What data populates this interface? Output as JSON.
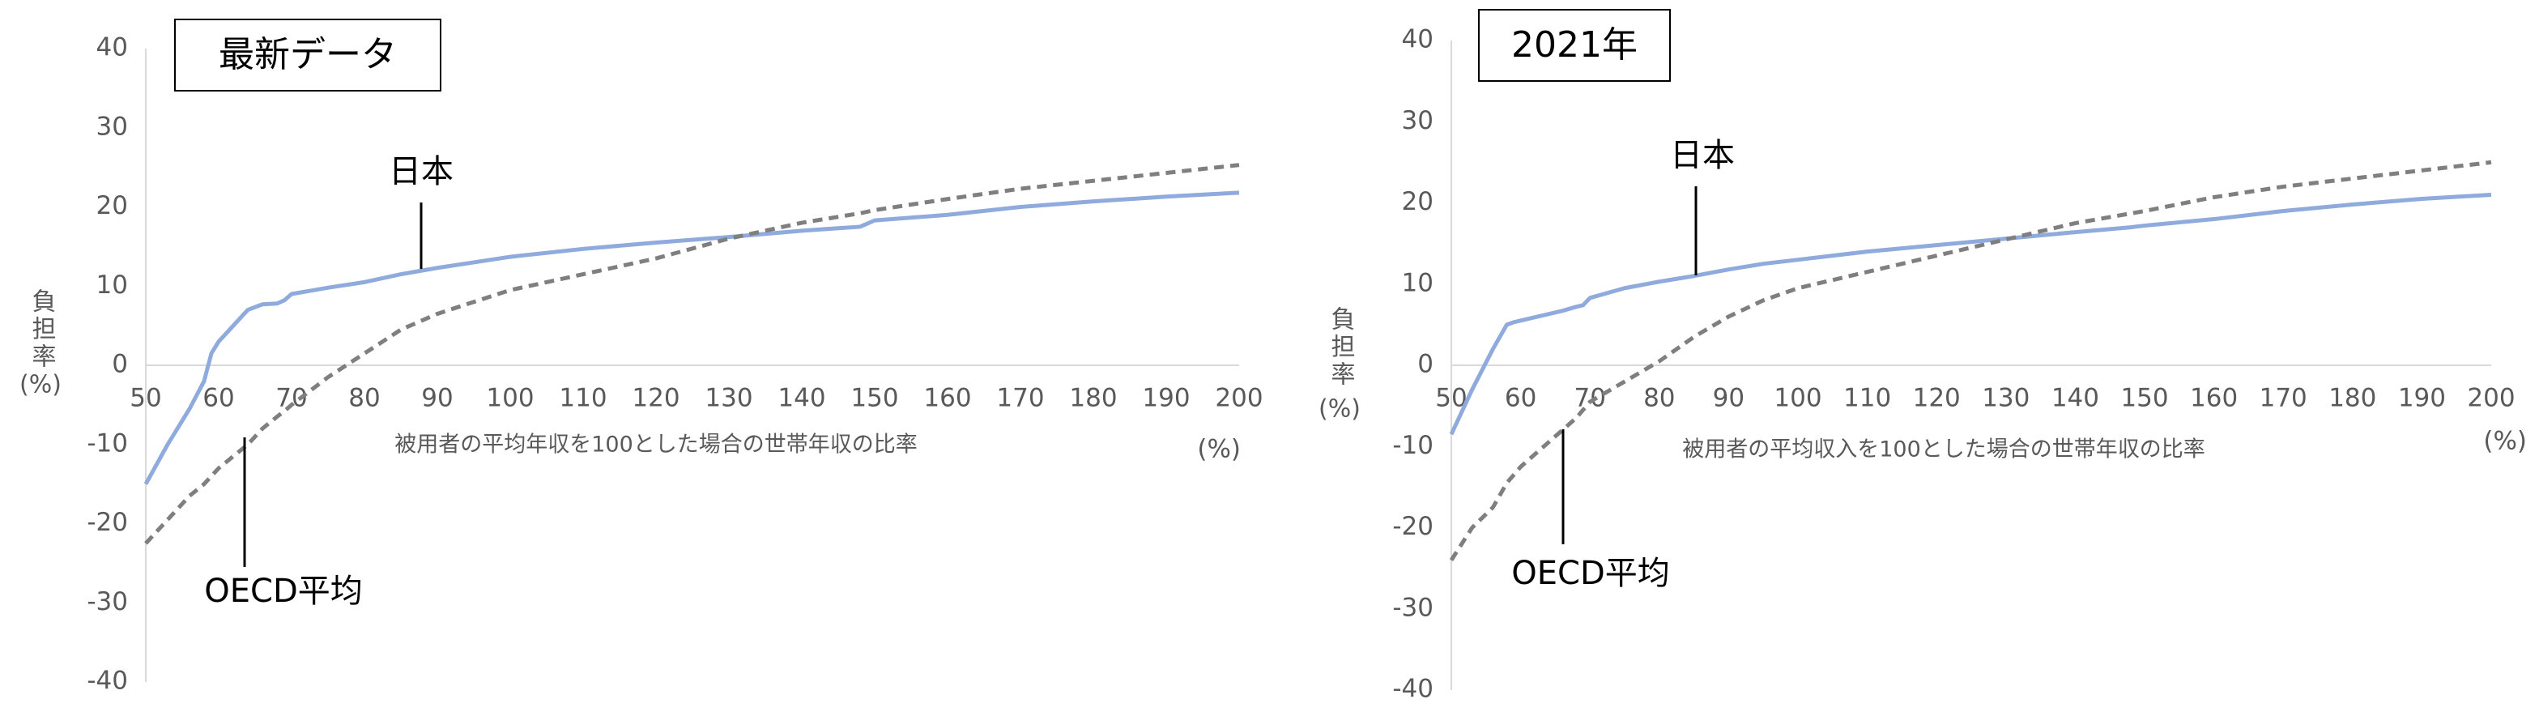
{
  "chart_data": [
    {
      "type": "line",
      "title": "最新データ",
      "x": [
        50,
        53,
        56,
        58,
        59,
        60,
        62,
        64,
        66,
        68,
        69,
        70,
        75,
        80,
        85,
        90,
        95,
        100,
        110,
        120,
        130,
        140,
        148,
        150,
        160,
        170,
        180,
        190,
        200
      ],
      "series": [
        {
          "name": "日本",
          "color": "#8faadc",
          "style": "solid",
          "values": [
            -15,
            -10,
            -5.5,
            -2,
            1.5,
            3,
            5,
            7,
            7.7,
            7.8,
            8.2,
            9,
            9.8,
            10.5,
            11.5,
            12.3,
            13,
            13.7,
            14.7,
            15.5,
            16.2,
            17,
            17.5,
            18.3,
            19,
            20,
            20.7,
            21.3,
            21.8
          ]
        },
        {
          "name": "OECD平均",
          "color": "#7f7f7f",
          "style": "dashed",
          "values": [
            -22.5,
            -19.5,
            -16.5,
            -15,
            -14,
            -13,
            -11.5,
            -10,
            -8,
            -6.5,
            -5.8,
            -5,
            -1.5,
            1.5,
            4.5,
            6.5,
            8,
            9.5,
            11.5,
            13.5,
            16,
            18,
            19.2,
            19.6,
            21,
            22.3,
            23.3,
            24.3,
            25.3
          ]
        }
      ],
      "xlim": [
        50,
        200
      ],
      "xticks": [
        50,
        60,
        70,
        80,
        90,
        100,
        110,
        120,
        130,
        140,
        150,
        160,
        170,
        180,
        190,
        200
      ],
      "ylim": [
        -40,
        40
      ],
      "yticks": [
        -40,
        -30,
        -20,
        -10,
        0,
        10,
        20,
        30,
        40
      ],
      "x_label": "被用者の平均年収を100とした場合の世帯年収の比率",
      "x_unit": "(%)",
      "y_label": "負担率",
      "y_unit": "(%)"
    },
    {
      "type": "line",
      "title": "2021年",
      "x": [
        50,
        53,
        56,
        58,
        59,
        60,
        62,
        64,
        66,
        68,
        69,
        70,
        75,
        80,
        85,
        90,
        95,
        100,
        110,
        120,
        130,
        140,
        148,
        150,
        160,
        170,
        180,
        190,
        200
      ],
      "series": [
        {
          "name": "日本",
          "color": "#8faadc",
          "style": "solid",
          "values": [
            -8.5,
            -3,
            2,
            5,
            5.3,
            5.5,
            5.9,
            6.3,
            6.7,
            7.2,
            7.4,
            8.3,
            9.5,
            10.3,
            11,
            11.8,
            12.5,
            13,
            14,
            14.8,
            15.6,
            16.4,
            17,
            17.2,
            18,
            19,
            19.8,
            20.5,
            21
          ]
        },
        {
          "name": "OECD平均",
          "color": "#7f7f7f",
          "style": "dashed",
          "values": [
            -24,
            -20,
            -17.5,
            -14.5,
            -13.5,
            -12.5,
            -11,
            -9.5,
            -8,
            -6.5,
            -5.5,
            -4.5,
            -2,
            0.5,
            3.5,
            6,
            8,
            9.5,
            11.5,
            13.5,
            15.5,
            17.5,
            18.7,
            19,
            20.7,
            22,
            23,
            24,
            25
          ]
        }
      ],
      "xlim": [
        50,
        200
      ],
      "xticks": [
        50,
        60,
        70,
        80,
        90,
        100,
        110,
        120,
        130,
        140,
        150,
        160,
        170,
        180,
        190,
        200
      ],
      "ylim": [
        -40,
        40
      ],
      "yticks": [
        -40,
        -30,
        -20,
        -10,
        0,
        10,
        20,
        30,
        40
      ],
      "x_label": "被用者の平均収入を100とした場合の世帯年収の比率",
      "x_unit": "(%)",
      "y_label": "負担率",
      "y_unit": "(%)"
    }
  ]
}
